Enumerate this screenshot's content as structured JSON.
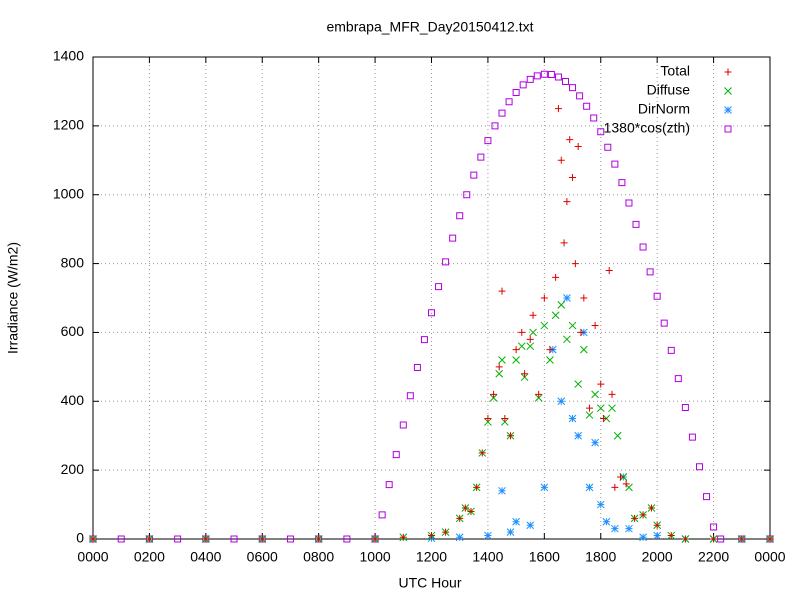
{
  "chart_data": {
    "type": "scatter",
    "title": "embrapa_MFR_Day20150412.txt",
    "xlabel": "UTC Hour",
    "ylabel": "Irradiance (W/m2)",
    "xlim": [
      0,
      24
    ],
    "ylim": [
      0,
      1400
    ],
    "xticks": [
      {
        "value": 0,
        "label": "0000"
      },
      {
        "value": 2,
        "label": "0200"
      },
      {
        "value": 4,
        "label": "0400"
      },
      {
        "value": 6,
        "label": "0600"
      },
      {
        "value": 8,
        "label": "0800"
      },
      {
        "value": 10,
        "label": "1000"
      },
      {
        "value": 12,
        "label": "1200"
      },
      {
        "value": 14,
        "label": "1400"
      },
      {
        "value": 16,
        "label": "1600"
      },
      {
        "value": 18,
        "label": "1800"
      },
      {
        "value": 20,
        "label": "2000"
      },
      {
        "value": 22,
        "label": "2200"
      },
      {
        "value": 24,
        "label": "0000"
      }
    ],
    "yticks": [
      0,
      200,
      400,
      600,
      800,
      1000,
      1200,
      1400
    ],
    "grid": true,
    "legend": "upper right",
    "series": [
      {
        "name": "Total",
        "color": "#e00000",
        "marker": "plus",
        "x": [
          0,
          2,
          4,
          6,
          8,
          10,
          11,
          12,
          12.5,
          13,
          13.2,
          13.4,
          13.6,
          13.8,
          14,
          14.2,
          14.4,
          14.5,
          14.6,
          14.8,
          15,
          15.2,
          15.3,
          15.5,
          15.6,
          15.8,
          16,
          16.2,
          16.4,
          16.5,
          16.6,
          16.7,
          16.8,
          16.9,
          17,
          17.1,
          17.2,
          17.3,
          17.4,
          17.6,
          17.8,
          18,
          18.1,
          18.3,
          18.4,
          18.5,
          18.7,
          18.9,
          19.2,
          19.5,
          19.8,
          20,
          20.5,
          21,
          22,
          23,
          24
        ],
        "values": [
          0,
          0,
          0,
          0,
          0,
          0,
          5,
          10,
          20,
          60,
          90,
          80,
          150,
          250,
          350,
          420,
          500,
          720,
          350,
          300,
          550,
          600,
          480,
          580,
          650,
          420,
          700,
          550,
          760,
          1250,
          1100,
          860,
          980,
          1160,
          1050,
          800,
          1140,
          600,
          700,
          380,
          620,
          450,
          350,
          780,
          420,
          150,
          180,
          160,
          60,
          70,
          90,
          40,
          10,
          0,
          0,
          0,
          0
        ]
      },
      {
        "name": "Diffuse",
        "color": "#00b000",
        "marker": "cross",
        "x": [
          0,
          2,
          4,
          6,
          8,
          10,
          11,
          12,
          12.5,
          13,
          13.2,
          13.4,
          13.6,
          13.8,
          14,
          14.2,
          14.4,
          14.5,
          14.6,
          14.8,
          15,
          15.2,
          15.3,
          15.5,
          15.6,
          15.8,
          16,
          16.2,
          16.4,
          16.6,
          16.8,
          17,
          17.2,
          17.4,
          17.6,
          17.8,
          18,
          18.2,
          18.4,
          18.6,
          18.8,
          19,
          19.2,
          19.5,
          19.8,
          20,
          20.5,
          21,
          22,
          23,
          24
        ],
        "values": [
          0,
          0,
          0,
          0,
          0,
          0,
          5,
          10,
          20,
          60,
          90,
          80,
          150,
          250,
          340,
          410,
          480,
          520,
          340,
          300,
          520,
          560,
          470,
          560,
          600,
          410,
          620,
          520,
          650,
          680,
          580,
          620,
          450,
          550,
          360,
          420,
          380,
          350,
          380,
          300,
          180,
          150,
          60,
          70,
          90,
          40,
          10,
          0,
          0,
          0,
          0
        ]
      },
      {
        "name": "DirNorm",
        "color": "#1e90ff",
        "marker": "star",
        "x": [
          0,
          2,
          4,
          6,
          8,
          10,
          12,
          13,
          14,
          14.5,
          14.8,
          15,
          15.5,
          16,
          16.3,
          16.6,
          16.8,
          17,
          17.2,
          17.4,
          17.6,
          17.8,
          18,
          18.2,
          18.5,
          18.8,
          19,
          19.5,
          20,
          21,
          22,
          23,
          24
        ],
        "values": [
          0,
          0,
          0,
          0,
          0,
          0,
          2,
          5,
          10,
          140,
          20,
          50,
          40,
          150,
          550,
          400,
          700,
          350,
          300,
          600,
          150,
          280,
          100,
          50,
          30,
          180,
          30,
          5,
          10,
          0,
          0,
          0,
          0
        ]
      },
      {
        "name": "1380*cos(zth)",
        "color": "#b000e0",
        "marker": "square",
        "x": [
          0,
          1,
          2,
          3,
          4,
          5,
          6,
          7,
          8,
          9,
          10,
          10.25,
          10.5,
          10.75,
          11,
          11.25,
          11.5,
          11.75,
          12,
          12.25,
          12.5,
          12.75,
          13,
          13.25,
          13.5,
          13.75,
          14,
          14.25,
          14.5,
          14.75,
          15,
          15.25,
          15.5,
          15.75,
          16,
          16.25,
          16.5,
          16.75,
          17,
          17.25,
          17.5,
          17.75,
          18,
          18.25,
          18.5,
          18.75,
          19,
          19.25,
          19.5,
          19.75,
          20,
          20.25,
          20.5,
          20.75,
          21,
          21.25,
          21.5,
          21.75,
          22,
          22.25,
          23,
          24
        ],
        "values": [
          0,
          0,
          0,
          0,
          0,
          0,
          0,
          0,
          0,
          0,
          0,
          70,
          158,
          245,
          331,
          416,
          498,
          579,
          657,
          733,
          805,
          874,
          939,
          1000,
          1057,
          1109,
          1157,
          1200,
          1237,
          1270,
          1297,
          1319,
          1335,
          1345,
          1350,
          1349,
          1342,
          1329,
          1311,
          1287,
          1257,
          1223,
          1183,
          1138,
          1089,
          1035,
          976,
          914,
          848,
          776,
          705,
          627,
          548,
          466,
          382,
          296,
          210,
          123,
          35,
          0,
          0,
          0
        ]
      }
    ]
  }
}
